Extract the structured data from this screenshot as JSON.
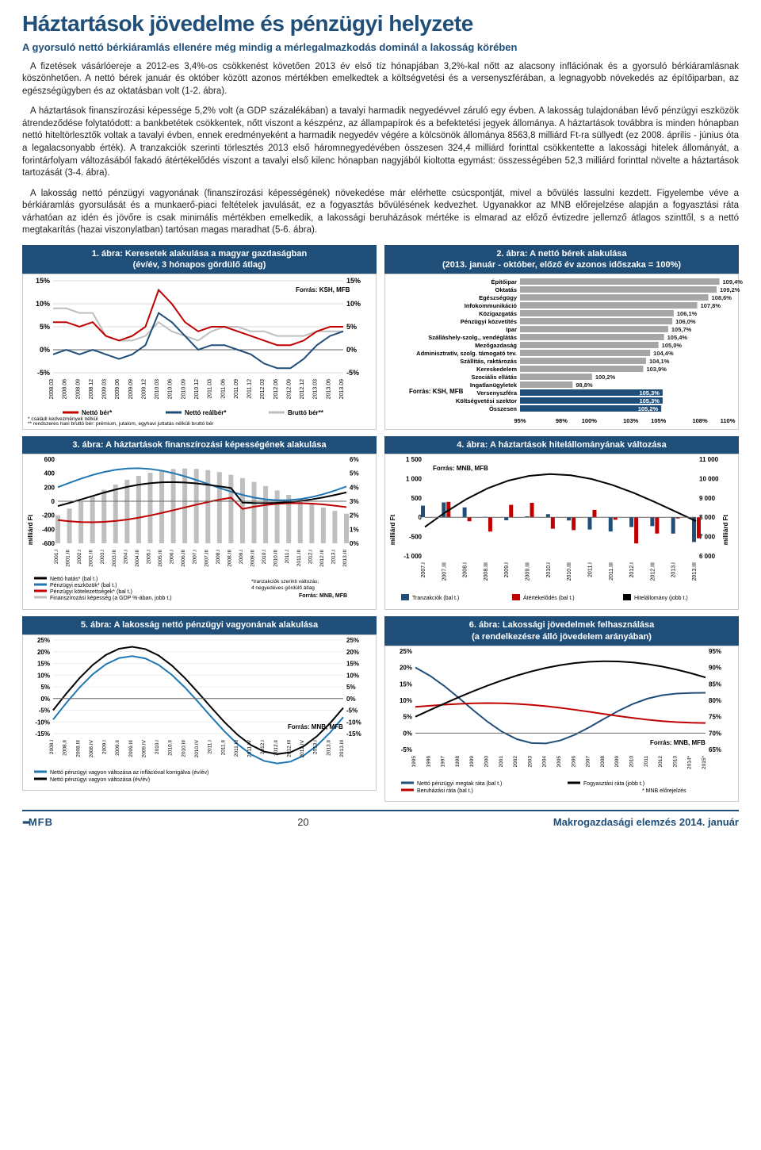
{
  "title": "Háztartások jövedelme és pénzügyi helyzete",
  "subtitle": "A gyorsuló nettó bérkiáramlás ellenére még mindig a mérlegalmazkodás dominál a lakosság körében",
  "paragraphs": [
    "A fizetések vásárlóereje a 2012-es 3,4%-os csökkenést követően 2013 év első tíz hónapjában 3,2%-kal nőtt az alacsony inflációnak és a gyorsuló bérkiáramlásnak köszönhetően. A nettó bérek január és október között azonos mértékben emelkedtek a költségvetési és a versenyszférában, a legnagyobb növekedés az építőiparban, az egészségügyben és az oktatásban volt (1-2. ábra).",
    "A háztartások finanszírozási képessége 5,2% volt (a GDP százalékában) a tavalyi harmadik negyedévvel záruló egy évben. A lakosság tulajdonában lévő pénzügyi eszközök átrendeződése folytatódott: a bankbetétek csökkentek, nőtt viszont a készpénz, az állampapírok és a befektetési jegyek állománya. A háztartások továbbra is minden hónapban nettó hiteltörlesztők voltak a tavalyi évben, ennek eredményeként a harmadik negyedév végére a kölcsönök állománya 8563,8 milliárd Ft-ra süllyedt (ez 2008. április - június óta a legalacsonyabb érték). A tranzakciók szerinti törlesztés 2013 első háromnegyedévében összesen 324,4 milliárd forinttal csökkentette a lakossági hitelek állományát, a forintárfolyam változásából fakadó átértékelődés viszont a tavalyi első kilenc hónapban nagyjából kioltotta egymást: összességében 52,3 milliárd forinttal növelte a háztartások tartozását (3-4. ábra).",
    "A lakosság nettó pénzügyi vagyonának (finanszírozási képességének) növekedése már elérhette csúcspontját, mivel a bővülés lassulni kezdett. Figyelembe véve a bérkiáramlás gyorsulását és a munkaerő-piaci feltételek javulását, ez a fogyasztás bővülésének kedvezhet. Ugyanakkor az MNB előrejelzése alapján a fogyasztási ráta várhatóan az idén és jövőre is csak minimális mértékben emelkedik, a lakossági beruházások mértéke is elmarad az előző évtizedre jellemző átlagos szinttől, s a nettó megtakarítás (hazai viszonylatban) tartósan magas maradhat (5-6. ábra)."
  ],
  "chart1": {
    "title": "1. ábra: Keresetek alakulása a magyar gazdaságban\n(év/év, 3 hónapos gördülő átlag)",
    "ylabels": [
      "15%",
      "10%",
      "5%",
      "0%",
      "-5%"
    ],
    "xlabels": [
      "2008.03",
      "2008.06",
      "2008.09",
      "2008.12",
      "2009.03",
      "2009.06",
      "2009.09",
      "2009.12",
      "2010.03",
      "2010.06",
      "2010.09",
      "2010.12",
      "2011.03",
      "2011.06",
      "2011.09",
      "2011.12",
      "2012.03",
      "2012.06",
      "2012.09",
      "2012.12",
      "2013.03",
      "2013.06",
      "2013.09"
    ],
    "source": "Forrás: KSH, MFB",
    "legend": [
      "Nettó bér*",
      "Nettó reálbér*",
      "Bruttó bér**"
    ],
    "note1": "* családi kedvezmények nélkül",
    "note2": "** rendszeres havi bruttó bér: prémium, jutalom, egyhavi juttatás nélküli bruttó bér",
    "series": {
      "netto": [
        6,
        6,
        5,
        6,
        3,
        2,
        3,
        5,
        13,
        10,
        6,
        4,
        5,
        5,
        4,
        3,
        2,
        1,
        1,
        2,
        4,
        5,
        5
      ],
      "real": [
        -1,
        0,
        -1,
        0,
        -1,
        -2,
        -1,
        1,
        8,
        6,
        3,
        0,
        1,
        1,
        0,
        -1,
        -3,
        -4,
        -4,
        -2,
        1,
        3,
        4
      ],
      "brutto": [
        9,
        9,
        8,
        8,
        3,
        2,
        2,
        3,
        6,
        4,
        3,
        2,
        4,
        5,
        5,
        4,
        4,
        3,
        3,
        3,
        4,
        4,
        4
      ]
    },
    "colors": {
      "netto": "#c00000",
      "real": "#1f4e79",
      "brutto": "#bfbfbf",
      "grid": "#d9d9d9"
    }
  },
  "chart2": {
    "title": "2. ábra: A nettó bérek alakulása\n(2013. január - október, előző év azonos időszaka = 100%)",
    "source": "Forrás: KSH, MFB",
    "categories": [
      "Építőipar",
      "Oktatás",
      "Egészségügy",
      "Infokommunikáció",
      "Közigazgatás",
      "Pénzügyi közvetítés",
      "Ipar",
      "Szálláshely-szolg., vendéglátás",
      "Mezőgazdaság",
      "Adminisztratív, szolg. támogató tev.",
      "Szállítás, raktározás",
      "Kereskedelem",
      "Szociális ellátás",
      "Ingatlanügyletek",
      "Versenyszféra",
      "Költségvetési szektor",
      "Összesen"
    ],
    "values": [
      109.4,
      109.2,
      108.6,
      107.8,
      106.1,
      106.0,
      105.7,
      105.4,
      105.0,
      104.4,
      104.1,
      103.9,
      100.2,
      98.8,
      105.3,
      105.3,
      105.2
    ],
    "labels": [
      "109,4%",
      "109,2%",
      "108,6%",
      "107,8%",
      "106,1%",
      "106,0%",
      "105,7%",
      "105,4%",
      "105,0%",
      "104,4%",
      "104,1%",
      "103,9%",
      "100,2%",
      "98,8%",
      "105,3%",
      "105,3%",
      "105,2%"
    ],
    "xticks": [
      "95%",
      "98%",
      "100%",
      "103%",
      "105%",
      "108%",
      "110%"
    ],
    "xlim": [
      95,
      110
    ],
    "bar_color": "#a6a6a6",
    "highlight_color": "#1f4e79",
    "highlight_from": 14
  },
  "chart3": {
    "title": "3. ábra: A háztartások finanszírozási képességének alakulása",
    "yleft_label": "milliárd Ft",
    "yleft": [
      "600",
      "400",
      "200",
      "0",
      "-200",
      "-400",
      "-600"
    ],
    "yright": [
      "6%",
      "5%",
      "4%",
      "3%",
      "2%",
      "1%",
      "0%"
    ],
    "xlabels": [
      "2001.I",
      "2001.III",
      "2002.I",
      "2002.III",
      "2003.I",
      "2003.III",
      "2004.I",
      "2004.III",
      "2005.I",
      "2005.III",
      "2006.I",
      "2006.III",
      "2007.I",
      "2007.III",
      "2008.I",
      "2008.III",
      "2009.I",
      "2009.III",
      "2010.I",
      "2010.III",
      "2011.I",
      "2011.III",
      "2012.I",
      "2012.III",
      "2013.I",
      "2013.III"
    ],
    "legend": [
      "Nettó hatás* (bal t.)",
      "Pénzügyi eszközök* (bal t.)",
      "Pénzügyi kötelezettségek* (bal t.)",
      "Finanszírozási képesség (a GDP %-ában, jobb t.)"
    ],
    "note": "*tranzakciók szerinti változás;\n4 negyedéves gördülő átlag",
    "source": "Forrás: MNB, MFB",
    "colors": {
      "eszk": "#1f77b4",
      "kot": "#c00000",
      "netto": "#000000",
      "fin": "#bfbfbf"
    }
  },
  "chart4": {
    "title": "4. ábra: A háztartások hitelállományának változása",
    "yleft_label": "milliárd Ft",
    "yright_label": "milliárd Ft",
    "yleft": [
      "1 500",
      "1 000",
      "500",
      "0",
      "-500",
      "-1 000"
    ],
    "yright": [
      "11 000",
      "10 000",
      "9 000",
      "8 000",
      "7 000",
      "6 000"
    ],
    "xlabels": [
      "2007.I",
      "2007.III",
      "2008.I",
      "2008.III",
      "2009.I",
      "2009.III",
      "2010.I",
      "2010.III",
      "2011.I",
      "2011.III",
      "2012.I",
      "2012.III",
      "2013.I",
      "2013.III"
    ],
    "legend": [
      "Tranzakciók (bal t.)",
      "Átértékelődés (bal t.)",
      "Hitelállomány (jobb t.)"
    ],
    "source": "Forrás: MNB, MFB",
    "colors": {
      "tranz": "#1f4e79",
      "atert": "#c00000",
      "allomany": "#000000"
    }
  },
  "chart5": {
    "title": "5. ábra: A lakosság nettó pénzügyi vagyonának alakulása",
    "yleft": [
      "25%",
      "20%",
      "15%",
      "10%",
      "5%",
      "0%",
      "-5%",
      "-10%",
      "-15%"
    ],
    "xlabels": [
      "2008.I",
      "2008.II",
      "2008.III",
      "2008.IV",
      "2009.I",
      "2009.II",
      "2009.III",
      "2009.IV",
      "2010.I",
      "2010.II",
      "2010.III",
      "2010.IV",
      "2011.I",
      "2011.II",
      "2011.III",
      "2011.IV",
      "2012.I",
      "2012.II",
      "2012.III",
      "2012.IV",
      "2013.I",
      "2013.II",
      "2013.III"
    ],
    "legend": [
      "Nettó pénzügyi vagyon változása az inflációval korrigálva (év/év)",
      "Nettó pénzügyi vagyon változása (év/év)"
    ],
    "source": "Forrás: MNB, MFB",
    "colors": {
      "korr": "#1f77b4",
      "valt": "#000000"
    }
  },
  "chart6": {
    "title": "6. ábra: Lakossági jövedelmek felhasználása\n(a rendelkezésre álló jövedelem arányában)",
    "yleft": [
      "25%",
      "20%",
      "15%",
      "10%",
      "5%",
      "0%",
      "-5%"
    ],
    "yright": [
      "95%",
      "90%",
      "85%",
      "80%",
      "75%",
      "70%",
      "65%"
    ],
    "xlabels": [
      "1995",
      "1996",
      "1997",
      "1998",
      "1999",
      "2000",
      "2001",
      "2002",
      "2003",
      "2004",
      "2005",
      "2006",
      "2007",
      "2008",
      "2009",
      "2010",
      "2011",
      "2012",
      "2013",
      "2014*",
      "2015*"
    ],
    "legend": [
      "Nettó pénzügyi megtak ráta (bal t.)",
      "Beruházási ráta (bal t.)",
      "Fogyasztási ráta (jobb t.)"
    ],
    "note": "* MNB előrejelzés",
    "source": "Forrás: MNB, MFB",
    "colors": {
      "megtak": "#1f4e79",
      "beruh": "#c00000",
      "fogy": "#000000"
    }
  },
  "footer": {
    "left": "MFB",
    "page": "20",
    "right": "Makrogazdasági elemzés 2014. január"
  }
}
